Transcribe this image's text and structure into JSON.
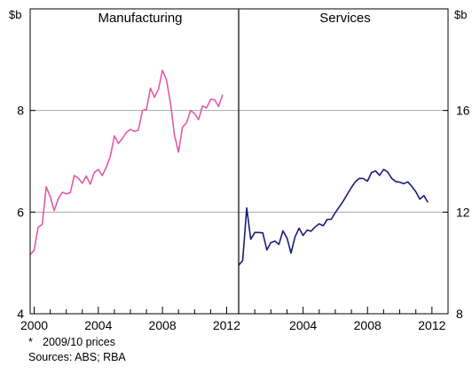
{
  "chart_data": {
    "type": "line",
    "left_unit": "$b",
    "right_unit": "$b",
    "grid": true,
    "panels": [
      {
        "title": "Manufacturing",
        "axis": "left",
        "yticks": [
          "4",
          "6",
          "8"
        ],
        "xticks": [
          "2000",
          "2004",
          "2008",
          "2012"
        ],
        "ylim": [
          4,
          10
        ],
        "xlim": [
          1999.75,
          2012.75
        ],
        "color": "#e35aa8",
        "series": [
          {
            "x": [
              1999.75,
              2000.0,
              2000.25,
              2000.5,
              2000.75,
              2001.0,
              2001.25,
              2001.5,
              2001.75,
              2002.0,
              2002.25,
              2002.5,
              2002.75,
              2003.0,
              2003.25,
              2003.5,
              2003.75,
              2004.0,
              2004.25,
              2004.5,
              2004.75,
              2005.0,
              2005.25,
              2005.5,
              2005.75,
              2006.0,
              2006.25,
              2006.5,
              2006.75,
              2007.0,
              2007.25,
              2007.5,
              2007.75,
              2008.0,
              2008.25,
              2008.5,
              2008.75,
              2009.0,
              2009.25,
              2009.5,
              2009.75,
              2010.0,
              2010.25,
              2010.5,
              2010.75,
              2011.0,
              2011.25,
              2011.5,
              2011.75
            ],
            "y": [
              5.16,
              5.25,
              5.7,
              5.76,
              6.5,
              6.3,
              6.03,
              6.26,
              6.39,
              6.36,
              6.38,
              6.72,
              6.67,
              6.57,
              6.71,
              6.55,
              6.78,
              6.84,
              6.72,
              6.89,
              7.1,
              7.5,
              7.35,
              7.45,
              7.57,
              7.63,
              7.59,
              7.61,
              8.0,
              8.02,
              8.44,
              8.26,
              8.42,
              8.79,
              8.6,
              8.14,
              7.51,
              7.18,
              7.67,
              7.76,
              8.0,
              7.94,
              7.82,
              8.09,
              8.05,
              8.22,
              8.21,
              8.08,
              8.31
            ]
          }
        ]
      },
      {
        "title": "Services",
        "axis": "right",
        "yticks": [
          "8",
          "12",
          "16"
        ],
        "xticks": [
          "2004",
          "2008",
          "2012"
        ],
        "ylim": [
          8,
          20
        ],
        "xlim": [
          2000.0,
          2013.0
        ],
        "color": "#1a1a7e",
        "series": [
          {
            "x": [
              2000.0,
              2000.25,
              2000.5,
              2000.75,
              2001.0,
              2001.25,
              2001.5,
              2001.75,
              2002.0,
              2002.25,
              2002.5,
              2002.75,
              2003.0,
              2003.25,
              2003.5,
              2003.75,
              2004.0,
              2004.25,
              2004.5,
              2004.75,
              2005.0,
              2005.25,
              2005.5,
              2005.75,
              2006.0,
              2006.25,
              2006.5,
              2006.75,
              2007.0,
              2007.25,
              2007.5,
              2007.75,
              2008.0,
              2008.25,
              2008.5,
              2008.75,
              2009.0,
              2009.25,
              2009.5,
              2009.75,
              2010.0,
              2010.25,
              2010.5,
              2010.75,
              2011.0,
              2011.25,
              2011.5,
              2011.75
            ],
            "y": [
              9.91,
              10.09,
              12.16,
              10.93,
              11.2,
              11.2,
              11.18,
              10.51,
              10.8,
              10.86,
              10.73,
              11.26,
              10.98,
              10.39,
              11.02,
              11.37,
              11.08,
              11.29,
              11.25,
              11.42,
              11.54,
              11.46,
              11.71,
              11.72,
              11.98,
              12.21,
              12.44,
              12.71,
              12.97,
              13.2,
              13.33,
              13.32,
              13.22,
              13.56,
              13.62,
              13.45,
              13.68,
              13.58,
              13.33,
              13.2,
              13.18,
              13.12,
              13.19,
              13.01,
              12.8,
              12.51,
              12.65,
              12.38
            ]
          }
        ]
      }
    ],
    "notes": {
      "star": "*",
      "prices": "2009/10 prices",
      "sources": "Sources: ABS; RBA"
    }
  }
}
